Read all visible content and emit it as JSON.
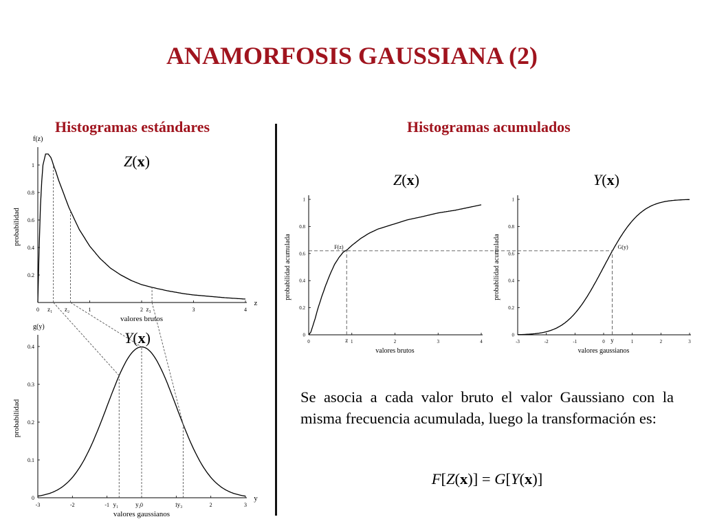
{
  "title": "ANAMORFOSIS GAUSSIANA (2)",
  "left_heading": "Histogramas estándares",
  "right_heading": "Histogramas acumulados",
  "fig_labels": {
    "z_hist": {
      "name": "Z",
      "arg": "x"
    },
    "y_hist": {
      "name": "Y",
      "arg": "x"
    },
    "z_cdf": {
      "name": "Z",
      "arg": "x"
    },
    "y_cdf": {
      "name": "Y",
      "arg": "x"
    }
  },
  "description": "Se asocia a cada valor bruto el valor Gaussiano con la misma frecuencia acumulada, luego la transformación es:",
  "formula": {
    "outer_left": "F",
    "inner_left": "Z",
    "outer_right": "G",
    "inner_right": "Y",
    "arg": "x"
  },
  "colors": {
    "accent": "#a0141e",
    "axis": "#000000",
    "curve": "#000000",
    "guide": "#555555",
    "divider": "#111111"
  },
  "chart_data": [
    {
      "id": "pdf-z",
      "type": "line",
      "ylabel": "probabilidad",
      "xlabel": "valores brutos",
      "y_axis_name": "f(z)",
      "x_axis_name": "z",
      "xlim": [
        0,
        4
      ],
      "ylim": [
        0,
        1.1
      ],
      "x_ticks": [
        "0",
        "1",
        "2",
        "3",
        "4"
      ],
      "x_tick_values": [
        0,
        1,
        2,
        3,
        4
      ],
      "y_ticks": [
        "0.2",
        "0.4",
        "0.6",
        "0.8",
        "1"
      ],
      "y_tick_values": [
        0.2,
        0.4,
        0.6,
        0.8,
        1.0
      ],
      "markers": [
        {
          "label": "z₁",
          "x": 0.3
        },
        {
          "label": "z₂",
          "x": 0.63
        },
        {
          "label": "z₃",
          "x": 2.2
        }
      ],
      "x": [
        0,
        0.03,
        0.06,
        0.1,
        0.15,
        0.2,
        0.26,
        0.3,
        0.35,
        0.4,
        0.5,
        0.6,
        0.7,
        0.8,
        1.0,
        1.2,
        1.4,
        1.6,
        1.8,
        2.0,
        2.2,
        2.5,
        2.8,
        3.0,
        3.3,
        3.6,
        4.0
      ],
      "y": [
        0,
        0.47,
        0.81,
        1.0,
        1.08,
        1.08,
        1.05,
        1.0,
        0.95,
        0.89,
        0.79,
        0.69,
        0.61,
        0.53,
        0.41,
        0.32,
        0.25,
        0.2,
        0.16,
        0.13,
        0.11,
        0.085,
        0.065,
        0.055,
        0.045,
        0.035,
        0.025
      ]
    },
    {
      "id": "pdf-y",
      "type": "line",
      "ylabel": "probabilidad",
      "xlabel": "valores gaussianos",
      "y_axis_name": "g(y)",
      "x_axis_name": "y",
      "xlim": [
        -3,
        3
      ],
      "ylim": [
        0,
        0.42
      ],
      "x_ticks": [
        "-3",
        "-2",
        "-1",
        "0",
        "1",
        "2",
        "3"
      ],
      "x_tick_values": [
        -3,
        -2,
        -1,
        0,
        1,
        2,
        3
      ],
      "y_ticks": [
        "0",
        "0.1",
        "0.2",
        "0.3",
        "0.4"
      ],
      "y_tick_values": [
        0,
        0.1,
        0.2,
        0.3,
        0.4
      ],
      "markers": [
        {
          "label": "y₁",
          "x": -0.65
        },
        {
          "label": "y₂",
          "x": 0
        },
        {
          "label": "y₃",
          "x": 1.2
        }
      ],
      "curve": "gaussian",
      "mean": 0,
      "sd": 1
    },
    {
      "id": "cdf-z",
      "type": "line",
      "ylabel": "probabilidad acumulada",
      "xlabel": "valores brutos",
      "point_label": "F(z)",
      "x_marker_label": "z",
      "xlim": [
        0,
        4
      ],
      "ylim": [
        0,
        1
      ],
      "x_ticks": [
        "0",
        "1",
        "2",
        "3",
        "4"
      ],
      "x_tick_values": [
        0,
        1,
        2,
        3,
        4
      ],
      "y_ticks": [
        "0",
        "0.2",
        "0.4",
        "0.6",
        "0.8",
        "1"
      ],
      "y_tick_values": [
        0,
        0.2,
        0.4,
        0.6,
        0.8,
        1.0
      ],
      "marker_x": 0.88,
      "marker_y": 0.62,
      "x": [
        0,
        0.05,
        0.1,
        0.15,
        0.2,
        0.3,
        0.4,
        0.5,
        0.6,
        0.7,
        0.8,
        0.9,
        1.0,
        1.2,
        1.4,
        1.6,
        1.8,
        2.0,
        2.3,
        2.6,
        3.0,
        3.4,
        4.0
      ],
      "y": [
        0,
        0.02,
        0.07,
        0.12,
        0.18,
        0.28,
        0.37,
        0.45,
        0.52,
        0.57,
        0.61,
        0.63,
        0.66,
        0.71,
        0.75,
        0.78,
        0.8,
        0.82,
        0.85,
        0.87,
        0.9,
        0.92,
        0.96
      ]
    },
    {
      "id": "cdf-y",
      "type": "line",
      "ylabel": "probabilidad acumulada",
      "xlabel": "valores gaussianos",
      "point_label": "G(y)",
      "x_marker_label": "y",
      "xlim": [
        -3,
        3
      ],
      "ylim": [
        0,
        1
      ],
      "x_ticks": [
        "-3",
        "-2",
        "-1",
        "0",
        "1",
        "2",
        "3"
      ],
      "x_tick_values": [
        -3,
        -2,
        -1,
        0,
        1,
        2,
        3
      ],
      "y_ticks": [
        "0",
        "0.2",
        "0.4",
        "0.6",
        "0.8",
        "1"
      ],
      "y_tick_values": [
        0,
        0.2,
        0.4,
        0.6,
        0.8,
        1.0
      ],
      "marker_x": 0.3,
      "marker_y": 0.62,
      "curve": "gaussian-cdf",
      "mean": 0,
      "sd": 1
    }
  ]
}
